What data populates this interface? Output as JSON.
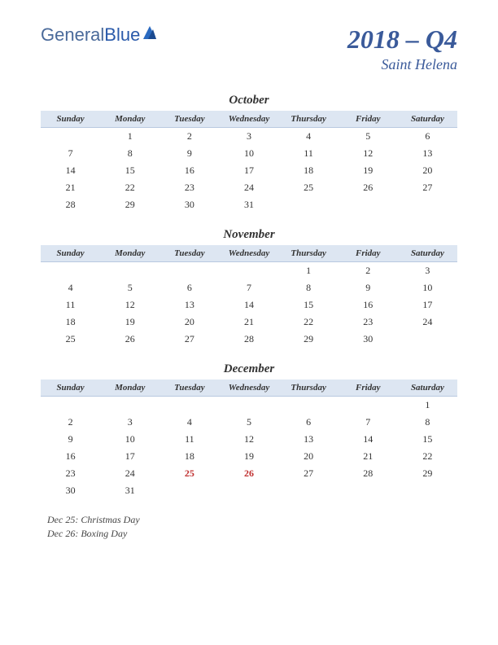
{
  "logo": {
    "part1": "General",
    "part2": "Blue"
  },
  "title": {
    "quarter": "2018 – Q4",
    "region": "Saint Helena"
  },
  "weekdays": [
    "Sunday",
    "Monday",
    "Tuesday",
    "Wednesday",
    "Thursday",
    "Friday",
    "Saturday"
  ],
  "colors": {
    "header_bg": "#dde6f2",
    "title_color": "#3a5a9a",
    "holiday_color": "#c03030",
    "text_color": "#333333"
  },
  "months": [
    {
      "name": "October",
      "weeks": [
        [
          "",
          "1",
          "2",
          "3",
          "4",
          "5",
          "6"
        ],
        [
          "7",
          "8",
          "9",
          "10",
          "11",
          "12",
          "13"
        ],
        [
          "14",
          "15",
          "16",
          "17",
          "18",
          "19",
          "20"
        ],
        [
          "21",
          "22",
          "23",
          "24",
          "25",
          "26",
          "27"
        ],
        [
          "28",
          "29",
          "30",
          "31",
          "",
          "",
          ""
        ]
      ],
      "holidays_idx": []
    },
    {
      "name": "November",
      "weeks": [
        [
          "",
          "",
          "",
          "",
          "1",
          "2",
          "3"
        ],
        [
          "4",
          "5",
          "6",
          "7",
          "8",
          "9",
          "10"
        ],
        [
          "11",
          "12",
          "13",
          "14",
          "15",
          "16",
          "17"
        ],
        [
          "18",
          "19",
          "20",
          "21",
          "22",
          "23",
          "24"
        ],
        [
          "25",
          "26",
          "27",
          "28",
          "29",
          "30",
          ""
        ]
      ],
      "holidays_idx": []
    },
    {
      "name": "December",
      "weeks": [
        [
          "",
          "",
          "",
          "",
          "",
          "",
          "1"
        ],
        [
          "2",
          "3",
          "4",
          "5",
          "6",
          "7",
          "8"
        ],
        [
          "9",
          "10",
          "11",
          "12",
          "13",
          "14",
          "15"
        ],
        [
          "16",
          "17",
          "18",
          "19",
          "20",
          "21",
          "22"
        ],
        [
          "23",
          "24",
          "25",
          "26",
          "27",
          "28",
          "29"
        ],
        [
          "30",
          "31",
          "",
          "",
          "",
          "",
          ""
        ]
      ],
      "holidays_idx": [
        [
          4,
          2
        ],
        [
          4,
          3
        ]
      ]
    }
  ],
  "holiday_notes": [
    "Dec 25: Christmas Day",
    "Dec 26: Boxing Day"
  ]
}
